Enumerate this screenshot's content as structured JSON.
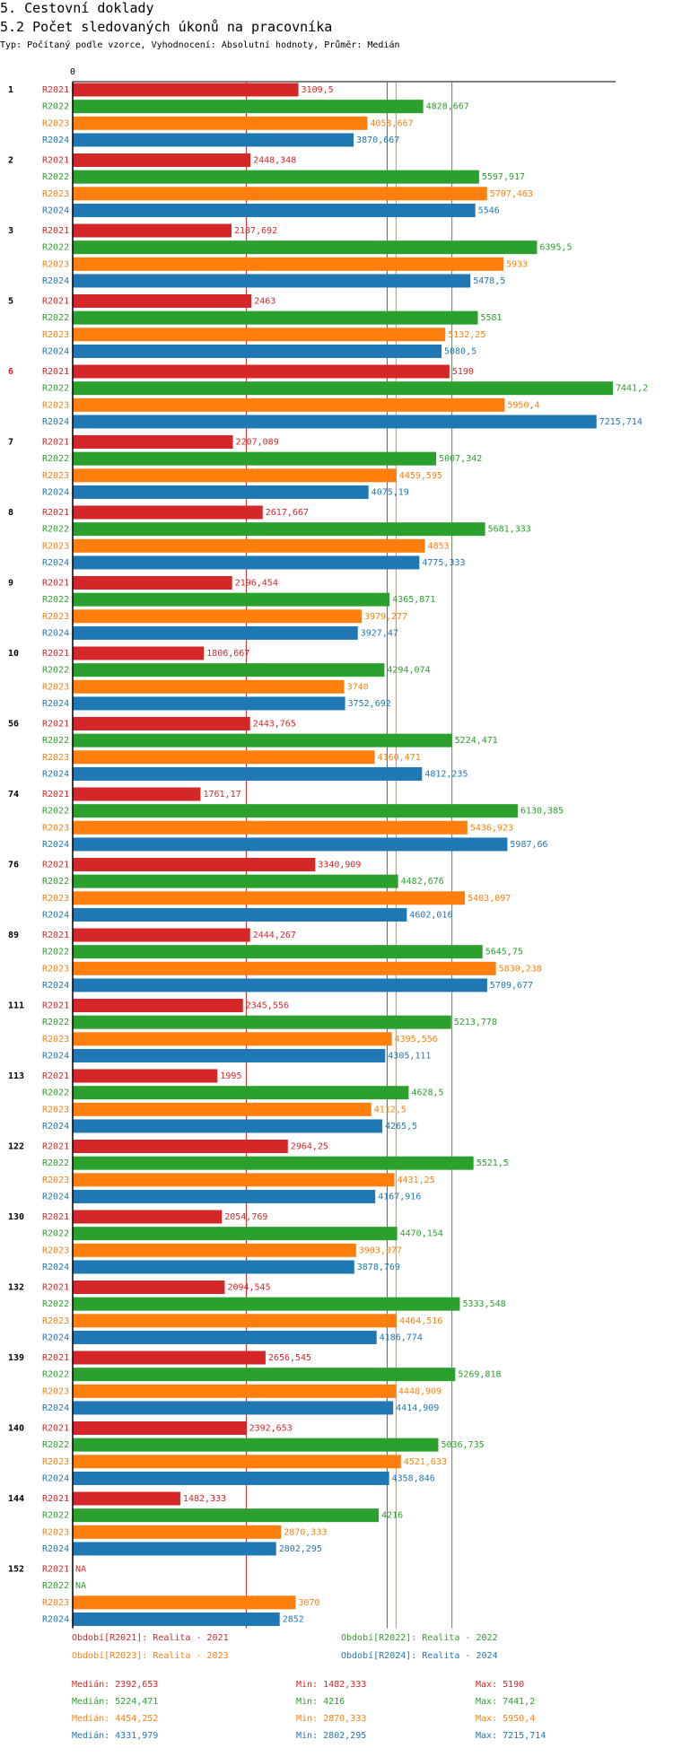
{
  "header": {
    "title": "5. Cestovní doklady",
    "subtitle": "5.2 Počet sledovaných úkonů na pracovníka",
    "description": "Typ: Počítaný podle vzorce, Vyhodnocení: Absolutní hodnoty, Průměr: Medián"
  },
  "chart_data": {
    "type": "bar",
    "orientation": "horizontal",
    "axis_zero_label": "0",
    "xlim": [
      0,
      7441.2
    ],
    "series_names": [
      "R2021",
      "R2022",
      "R2023",
      "R2024"
    ],
    "colors": {
      "R2021": "#d62728",
      "R2022": "#2ca02c",
      "R2023": "#ff7f0e",
      "R2024": "#1f77b4"
    },
    "highlight_group": "6",
    "highlight_color": "#d62728",
    "groups": [
      {
        "name": "1",
        "values": [
          3109.5,
          4828.667,
          4058.667,
          3870.667
        ],
        "labels": [
          "3109,5",
          "4828,667",
          "4058,667",
          "3870,667"
        ]
      },
      {
        "name": "2",
        "values": [
          2448.348,
          5597.917,
          5707.463,
          5546
        ],
        "labels": [
          "2448,348",
          "5597,917",
          "5707,463",
          "5546"
        ]
      },
      {
        "name": "3",
        "values": [
          2187.692,
          6395.5,
          5933,
          5478.5
        ],
        "labels": [
          "2187,692",
          "6395,5",
          "5933",
          "5478,5"
        ]
      },
      {
        "name": "5",
        "values": [
          2463,
          5581,
          5132.25,
          5080.5
        ],
        "labels": [
          "2463",
          "5581",
          "5132,25",
          "5080,5"
        ]
      },
      {
        "name": "6",
        "values": [
          5190,
          7441.2,
          5950.4,
          7215.714
        ],
        "labels": [
          "5190",
          "7441,2",
          "5950,4",
          "7215,714"
        ]
      },
      {
        "name": "7",
        "values": [
          2207.089,
          5007.342,
          4459.595,
          4075.19
        ],
        "labels": [
          "2207,089",
          "5007,342",
          "4459,595",
          "4075,19"
        ]
      },
      {
        "name": "8",
        "values": [
          2617.667,
          5681.333,
          4853,
          4775.333
        ],
        "labels": [
          "2617,667",
          "5681,333",
          "4853",
          "4775,333"
        ]
      },
      {
        "name": "9",
        "values": [
          2196.454,
          4365.871,
          3979.277,
          3927.47
        ],
        "labels": [
          "2196,454",
          "4365,871",
          "3979,277",
          "3927,47"
        ]
      },
      {
        "name": "10",
        "values": [
          1806.667,
          4294.074,
          3740,
          3752.692
        ],
        "labels": [
          "1806,667",
          "4294,074",
          "3740",
          "3752,692"
        ]
      },
      {
        "name": "56",
        "values": [
          2443.765,
          5224.471,
          4160.471,
          4812.235
        ],
        "labels": [
          "2443,765",
          "5224,471",
          "4160,471",
          "4812,235"
        ]
      },
      {
        "name": "74",
        "values": [
          1761.17,
          6130.385,
          5436.923,
          5987.66
        ],
        "labels": [
          "1761,17",
          "6130,385",
          "5436,923",
          "5987,66"
        ]
      },
      {
        "name": "76",
        "values": [
          3340.909,
          4482.676,
          5403.097,
          4602.016
        ],
        "labels": [
          "3340,909",
          "4482,676",
          "5403,097",
          "4602,016"
        ]
      },
      {
        "name": "89",
        "values": [
          2444.267,
          5645.75,
          5830.238,
          5709.677
        ],
        "labels": [
          "2444,267",
          "5645,75",
          "5830,238",
          "5709,677"
        ]
      },
      {
        "name": "111",
        "values": [
          2345.556,
          5213.778,
          4395.556,
          4305.111
        ],
        "labels": [
          "2345,556",
          "5213,778",
          "4395,556",
          "4305,111"
        ]
      },
      {
        "name": "113",
        "values": [
          1995,
          4628.5,
          4112.5,
          4265.5
        ],
        "labels": [
          "1995",
          "4628,5",
          "4112,5",
          "4265,5"
        ]
      },
      {
        "name": "122",
        "values": [
          2964.25,
          5521.5,
          4431.25,
          4167.916
        ],
        "labels": [
          "2964,25",
          "5521,5",
          "4431,25",
          "4167,916"
        ]
      },
      {
        "name": "130",
        "values": [
          2054.769,
          4470.154,
          3903.077,
          3878.769
        ],
        "labels": [
          "2054,769",
          "4470,154",
          "3903,077",
          "3878,769"
        ]
      },
      {
        "name": "132",
        "values": [
          2094.545,
          5333.548,
          4464.516,
          4186.774
        ],
        "labels": [
          "2094,545",
          "5333,548",
          "4464,516",
          "4186,774"
        ]
      },
      {
        "name": "139",
        "values": [
          2656.545,
          5269.818,
          4448.909,
          4414.909
        ],
        "labels": [
          "2656,545",
          "5269,818",
          "4448,909",
          "4414,909"
        ]
      },
      {
        "name": "140",
        "values": [
          2392.653,
          5036.735,
          4521.633,
          4358.846
        ],
        "labels": [
          "2392,653",
          "5036,735",
          "4521,633",
          "4358,846"
        ]
      },
      {
        "name": "144",
        "values": [
          1482.333,
          4216,
          2870.333,
          2802.295
        ],
        "labels": [
          "1482,333",
          "4216",
          "2870,333",
          "2802,295"
        ]
      },
      {
        "name": "152",
        "values": [
          null,
          null,
          3070,
          2852
        ],
        "labels": [
          "NA",
          "NA",
          "3070",
          "2852"
        ]
      }
    ],
    "median_lines": [
      {
        "series": "R2021",
        "value": 2392.653
      },
      {
        "series": "R2022",
        "value": 5224.471
      },
      {
        "series": "R2023",
        "value": 4454.252
      },
      {
        "series": "R2024",
        "value": 4331.979
      }
    ]
  },
  "legend": {
    "r2021": "Období[R2021]: Realita - 2021",
    "r2022": "Období[R2022]: Realita - 2022",
    "r2023": "Období[R2023]: Realita - 2023",
    "r2024": "Období[R2024]: Realita - 2024"
  },
  "stats": [
    {
      "series": "R2021",
      "median": "Medián: 2392,653",
      "min": "Min: 1482,333",
      "max": "Max: 5190"
    },
    {
      "series": "R2022",
      "median": "Medián: 5224,471",
      "min": "Min: 4216",
      "max": "Max: 7441,2"
    },
    {
      "series": "R2023",
      "median": "Medián: 4454,252",
      "min": "Min: 2870,333",
      "max": "Max: 5950,4"
    },
    {
      "series": "R2024",
      "median": "Medián: 4331,979",
      "min": "Min: 2802,295",
      "max": "Max: 7215,714"
    }
  ]
}
